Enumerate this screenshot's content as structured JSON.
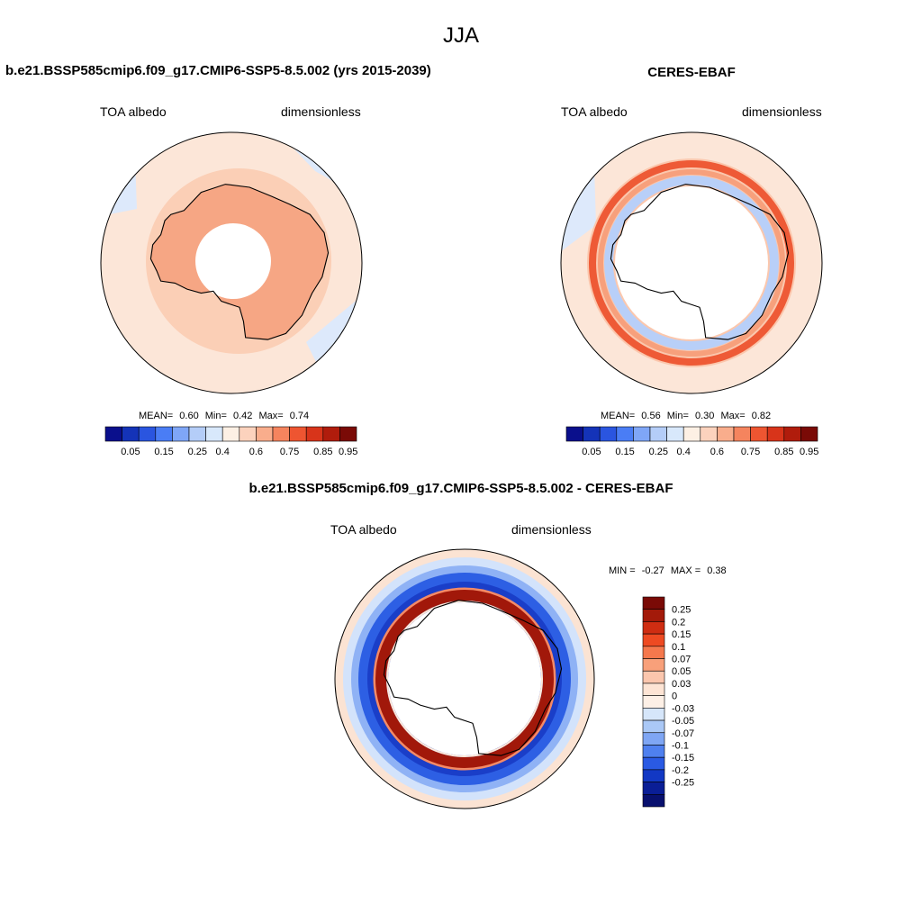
{
  "figure": {
    "season": "JJA"
  },
  "panels": [
    {
      "title": "b.e21.BSSP585cmip6.f09_g17.CMIP6-SSP5-8.5.002 (yrs 2015-2039)",
      "left_label": "TOA albedo",
      "right_label": "dimensionless",
      "stats": {
        "mean_label": "MEAN=",
        "mean": "0.60",
        "min_label": "Min=",
        "min": "0.42",
        "max_label": "Max=",
        "max": "0.74"
      }
    },
    {
      "title": "CERES-EBAF",
      "left_label": "TOA albedo",
      "right_label": "dimensionless",
      "stats": {
        "mean_label": "MEAN=",
        "mean": "0.56",
        "min_label": "Min=",
        "min": "0.30",
        "max_label": "Max=",
        "max": "0.82"
      }
    },
    {
      "title": "b.e21.BSSP585cmip6.f09_g17.CMIP6-SSP5-8.5.002 - CERES-EBAF",
      "left_label": "TOA albedo",
      "right_label": "dimensionless",
      "stats": {
        "min_label": "MIN =",
        "min": "-0.27",
        "max_label": "MAX =",
        "max": "0.38"
      }
    }
  ],
  "colorbars": {
    "albedo": {
      "labels": [
        "0.05",
        "0.15",
        "0.25",
        "0.4",
        "0.6",
        "0.75",
        "0.85",
        "0.95"
      ],
      "colors": [
        "#0a0f8c",
        "#1433b8",
        "#2a55e0",
        "#4a7df5",
        "#7fa6f7",
        "#b4cdf8",
        "#d8e8fb",
        "#fdf0e4",
        "#fcd2bd",
        "#f9ad8c",
        "#f5845e",
        "#ee5531",
        "#d8341a",
        "#b01c0c",
        "#7a0a06"
      ]
    },
    "difference": {
      "labels": [
        "0.25",
        "0.2",
        "0.15",
        "0.1",
        "0.07",
        "0.05",
        "0.03",
        "0",
        "-0.03",
        "-0.05",
        "-0.07",
        "-0.1",
        "-0.15",
        "-0.2",
        "-0.25"
      ],
      "colors": [
        "#7a0a06",
        "#a31a0a",
        "#cf2d12",
        "#ee4a22",
        "#f5784d",
        "#f8a07a",
        "#fbc6ad",
        "#fde4d4",
        "#fdf0e6",
        "#d6e6fa",
        "#aac8f6",
        "#7fa6f4",
        "#4f80ef",
        "#2a5ae4",
        "#1238c4",
        "#0a1e96",
        "#08106e"
      ]
    }
  }
}
